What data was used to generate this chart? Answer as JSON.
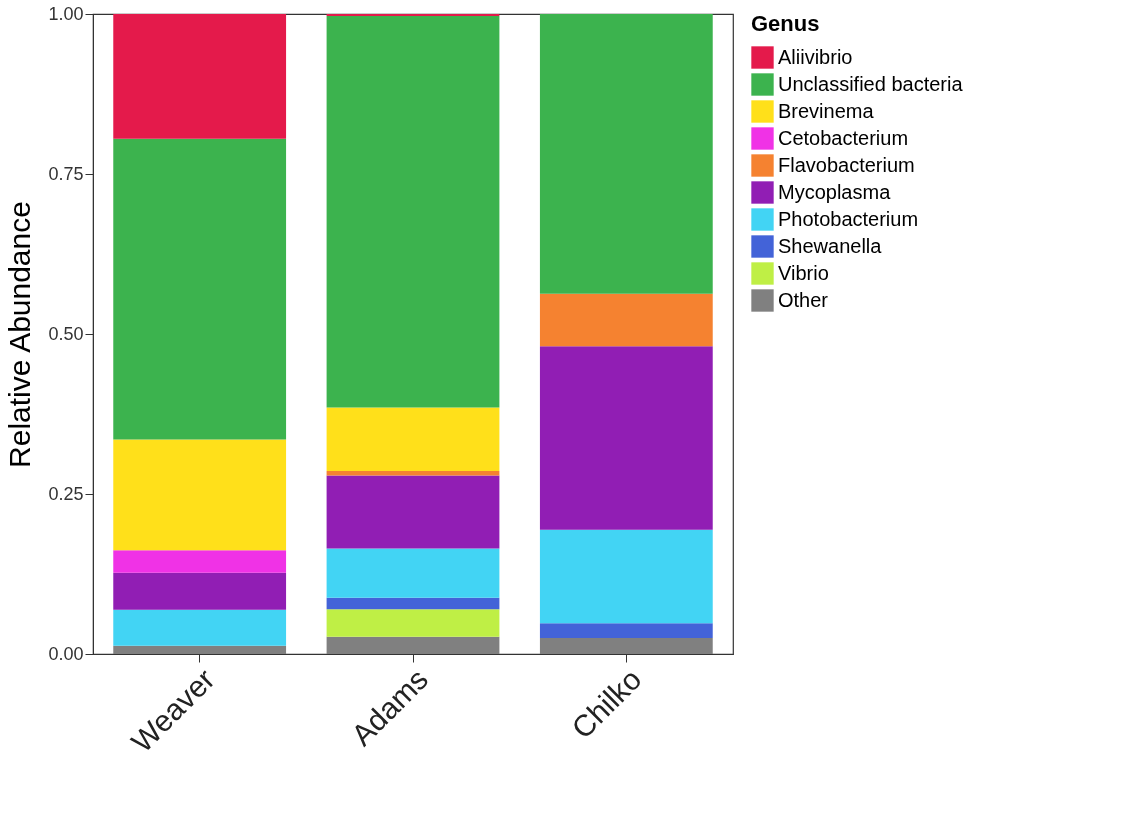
{
  "chart_data": {
    "type": "bar",
    "stacked": true,
    "ylabel": "Relative Abundance",
    "legend_title": "Genus",
    "legend": "right",
    "grid": false,
    "categories": [
      "Weaver",
      "Adams",
      "Chilko"
    ],
    "ylim": [
      0,
      1
    ],
    "yticks": [
      {
        "value": 0,
        "label": "0.00"
      },
      {
        "value": 0.25,
        "label": "0.25"
      },
      {
        "value": 0.5,
        "label": "0.50"
      },
      {
        "value": 0.75,
        "label": "0.75"
      },
      {
        "value": 1,
        "label": "1.00"
      }
    ],
    "series": [
      {
        "name": "Other",
        "color": "#808080",
        "values": [
          0.013,
          0.027,
          0.025
        ]
      },
      {
        "name": "Vibrio",
        "color": "#bfef45",
        "values": [
          0,
          0.043,
          0
        ]
      },
      {
        "name": "Shewanella",
        "color": "#4363d8",
        "values": [
          0,
          0.018,
          0.023
        ]
      },
      {
        "name": "Photobacterium",
        "color": "#42d4f4",
        "values": [
          0.056,
          0.077,
          0.146
        ]
      },
      {
        "name": "Mycoplasma",
        "color": "#911eb4",
        "values": [
          0.058,
          0.114,
          0.287
        ]
      },
      {
        "name": "Flavobacterium",
        "color": "#f58230",
        "values": [
          0,
          0.007,
          0.082
        ]
      },
      {
        "name": "Cetobacterium",
        "color": "#f032e6",
        "values": [
          0.035,
          0,
          0
        ]
      },
      {
        "name": "Brevinema",
        "color": "#ffe01a",
        "values": [
          0.173,
          0.099,
          0
        ]
      },
      {
        "name": "Unclassified bacteria",
        "color": "#3cb34e",
        "values": [
          0.47,
          0.612,
          0.437
        ]
      },
      {
        "name": "Aliivibrio",
        "color": "#e41a4b",
        "values": [
          0.195,
          0.003,
          0
        ]
      }
    ]
  }
}
